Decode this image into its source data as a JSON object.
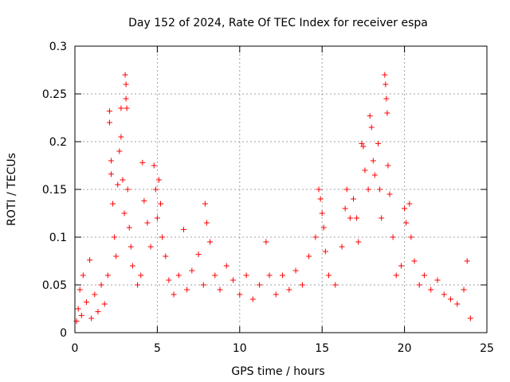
{
  "chart_data": {
    "type": "scatter",
    "title": "Day 152 of 2024, Rate Of TEC Index for receiver espa",
    "xlabel": "GPS time / hours",
    "ylabel": "ROTI / TECUs",
    "xlim": [
      0,
      25
    ],
    "ylim": [
      0,
      0.3
    ],
    "xticks": [
      0,
      5,
      10,
      15,
      20,
      25
    ],
    "xtick_labels": [
      "0",
      "5",
      "10",
      "15",
      "20",
      "25"
    ],
    "yticks": [
      0,
      0.05,
      0.1,
      0.15,
      0.2,
      0.25,
      0.3
    ],
    "ytick_labels": [
      "0",
      "0.05",
      "0.1",
      "0.15",
      "0.2",
      "0.25",
      "0.3"
    ],
    "grid": true,
    "marker": "+",
    "color": "#ff0000",
    "series": [
      {
        "name": "ROTI",
        "points": [
          [
            0.1,
            0.012
          ],
          [
            0.2,
            0.025
          ],
          [
            0.3,
            0.045
          ],
          [
            0.4,
            0.018
          ],
          [
            0.5,
            0.06
          ],
          [
            0.7,
            0.032
          ],
          [
            0.9,
            0.076
          ],
          [
            1.0,
            0.015
          ],
          [
            1.2,
            0.04
          ],
          [
            1.4,
            0.022
          ],
          [
            1.6,
            0.05
          ],
          [
            1.8,
            0.03
          ],
          [
            2.0,
            0.06
          ],
          [
            2.1,
            0.232
          ],
          [
            2.1,
            0.22
          ],
          [
            2.2,
            0.18
          ],
          [
            2.2,
            0.166
          ],
          [
            2.3,
            0.135
          ],
          [
            2.4,
            0.1
          ],
          [
            2.5,
            0.08
          ],
          [
            2.6,
            0.155
          ],
          [
            2.7,
            0.19
          ],
          [
            2.8,
            0.235
          ],
          [
            2.8,
            0.205
          ],
          [
            2.9,
            0.16
          ],
          [
            3.0,
            0.125
          ],
          [
            3.05,
            0.27
          ],
          [
            3.1,
            0.26
          ],
          [
            3.1,
            0.245
          ],
          [
            3.15,
            0.235
          ],
          [
            3.2,
            0.15
          ],
          [
            3.3,
            0.11
          ],
          [
            3.4,
            0.09
          ],
          [
            3.5,
            0.07
          ],
          [
            3.8,
            0.05
          ],
          [
            4.0,
            0.06
          ],
          [
            4.1,
            0.178
          ],
          [
            4.2,
            0.138
          ],
          [
            4.4,
            0.115
          ],
          [
            4.6,
            0.09
          ],
          [
            4.8,
            0.175
          ],
          [
            4.9,
            0.15
          ],
          [
            5.0,
            0.12
          ],
          [
            5.1,
            0.16
          ],
          [
            5.2,
            0.135
          ],
          [
            5.3,
            0.1
          ],
          [
            5.5,
            0.08
          ],
          [
            5.7,
            0.055
          ],
          [
            6.0,
            0.04
          ],
          [
            6.3,
            0.06
          ],
          [
            6.6,
            0.108
          ],
          [
            6.8,
            0.045
          ],
          [
            7.1,
            0.065
          ],
          [
            7.5,
            0.082
          ],
          [
            7.8,
            0.05
          ],
          [
            7.9,
            0.135
          ],
          [
            8.0,
            0.115
          ],
          [
            8.2,
            0.095
          ],
          [
            8.5,
            0.06
          ],
          [
            8.8,
            0.045
          ],
          [
            9.2,
            0.07
          ],
          [
            9.6,
            0.055
          ],
          [
            10.0,
            0.04
          ],
          [
            10.4,
            0.06
          ],
          [
            10.8,
            0.035
          ],
          [
            11.2,
            0.05
          ],
          [
            11.6,
            0.095
          ],
          [
            11.8,
            0.06
          ],
          [
            12.2,
            0.04
          ],
          [
            12.6,
            0.06
          ],
          [
            13.0,
            0.045
          ],
          [
            13.4,
            0.065
          ],
          [
            13.8,
            0.05
          ],
          [
            14.2,
            0.08
          ],
          [
            14.6,
            0.1
          ],
          [
            14.8,
            0.15
          ],
          [
            14.9,
            0.14
          ],
          [
            15.0,
            0.125
          ],
          [
            15.1,
            0.11
          ],
          [
            15.2,
            0.085
          ],
          [
            15.4,
            0.06
          ],
          [
            15.8,
            0.05
          ],
          [
            16.2,
            0.09
          ],
          [
            16.4,
            0.13
          ],
          [
            16.5,
            0.15
          ],
          [
            16.7,
            0.12
          ],
          [
            16.9,
            0.14
          ],
          [
            17.1,
            0.12
          ],
          [
            17.2,
            0.095
          ],
          [
            17.4,
            0.198
          ],
          [
            17.5,
            0.195
          ],
          [
            17.6,
            0.17
          ],
          [
            17.8,
            0.15
          ],
          [
            17.9,
            0.227
          ],
          [
            18.0,
            0.215
          ],
          [
            18.1,
            0.18
          ],
          [
            18.2,
            0.165
          ],
          [
            18.4,
            0.198
          ],
          [
            18.5,
            0.15
          ],
          [
            18.6,
            0.12
          ],
          [
            18.8,
            0.27
          ],
          [
            18.85,
            0.26
          ],
          [
            18.9,
            0.245
          ],
          [
            18.95,
            0.23
          ],
          [
            19.0,
            0.175
          ],
          [
            19.1,
            0.145
          ],
          [
            19.3,
            0.1
          ],
          [
            19.5,
            0.06
          ],
          [
            19.8,
            0.07
          ],
          [
            20.0,
            0.13
          ],
          [
            20.1,
            0.115
          ],
          [
            20.3,
            0.135
          ],
          [
            20.4,
            0.1
          ],
          [
            20.6,
            0.075
          ],
          [
            20.9,
            0.05
          ],
          [
            21.2,
            0.06
          ],
          [
            21.6,
            0.045
          ],
          [
            22.0,
            0.055
          ],
          [
            22.4,
            0.04
          ],
          [
            22.8,
            0.035
          ],
          [
            23.2,
            0.03
          ],
          [
            23.6,
            0.045
          ],
          [
            23.8,
            0.075
          ],
          [
            24.0,
            0.015
          ]
        ]
      }
    ]
  }
}
